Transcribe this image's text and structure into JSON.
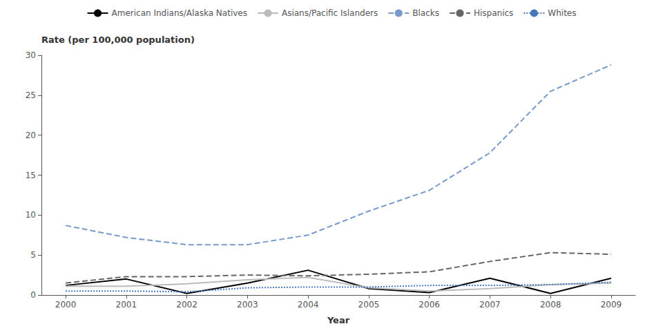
{
  "chart_data": {
    "type": "line",
    "xlabel": "Year",
    "ylabel": "Rate (per 100,000 population)",
    "x": [
      2000,
      2001,
      2002,
      2003,
      2004,
      2005,
      2006,
      2007,
      2008,
      2009
    ],
    "series": [
      {
        "name": "American Indians/Alaska Natives",
        "color": "#000000",
        "line_style": "solid",
        "values": [
          1.2,
          2.0,
          0.2,
          1.5,
          3.1,
          0.8,
          0.3,
          2.1,
          0.2,
          2.1
        ]
      },
      {
        "name": "Asians/Pacific Islanders",
        "color": "#bbbbbb",
        "line_style": "solid",
        "values": [
          1.1,
          1.1,
          1.4,
          1.9,
          2.2,
          0.9,
          0.5,
          0.8,
          1.3,
          1.5
        ]
      },
      {
        "name": "Blacks",
        "color": "#7799cc",
        "line_style": "dashed",
        "values": [
          8.7,
          7.2,
          6.3,
          6.3,
          7.5,
          10.5,
          13.1,
          17.8,
          25.5,
          28.8
        ]
      },
      {
        "name": "Hispanics",
        "color": "#666666",
        "line_style": "dashed",
        "values": [
          1.5,
          2.3,
          2.3,
          2.5,
          2.4,
          2.6,
          2.9,
          4.2,
          5.3,
          5.1
        ]
      },
      {
        "name": "Whites",
        "color": "#4477bb",
        "line_style": "dotted",
        "values": [
          0.5,
          0.5,
          0.4,
          0.9,
          1.0,
          1.0,
          1.2,
          1.2,
          1.3,
          1.6
        ]
      }
    ],
    "xlim": [
      1999.6,
      2009.4
    ],
    "xticks": [
      2000,
      2001,
      2002,
      2003,
      2004,
      2005,
      2006,
      2007,
      2008,
      2009
    ],
    "ylim": [
      0,
      30
    ],
    "yticks": [
      0,
      5,
      10,
      15,
      20,
      25,
      30
    ],
    "grid": false,
    "legend": "top"
  }
}
